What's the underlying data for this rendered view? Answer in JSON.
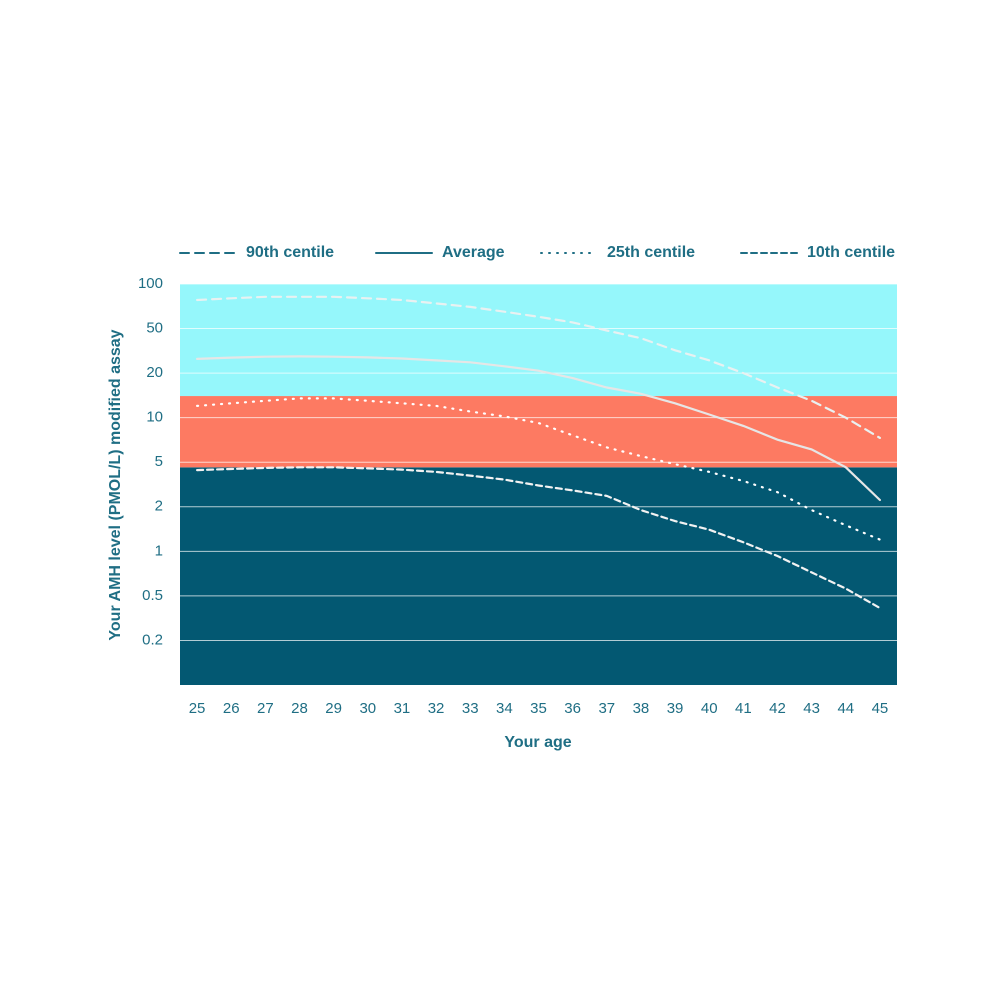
{
  "chart_data": {
    "type": "line",
    "x_label": "Your age",
    "y_label": "Your AMH level (PMOL/L) modified assay",
    "x": [
      25,
      26,
      27,
      28,
      29,
      30,
      31,
      32,
      33,
      34,
      35,
      36,
      37,
      38,
      39,
      40,
      41,
      42,
      43,
      44,
      45
    ],
    "xlim": [
      24.5,
      45.5
    ],
    "xticks": [
      25,
      26,
      27,
      28,
      29,
      30,
      31,
      32,
      33,
      34,
      35,
      36,
      37,
      38,
      39,
      40,
      41,
      42,
      43,
      44,
      45
    ],
    "ylim": [
      0.1,
      100
    ],
    "yticks": [
      0.2,
      0.5,
      1,
      2,
      5,
      10,
      20,
      50,
      100
    ],
    "grid": true,
    "legend_position": "top",
    "legend_color": "#1f6e84",
    "bands": [
      {
        "from": 0.1,
        "to": 4.5,
        "color": "#035872"
      },
      {
        "from": 4.5,
        "to": 14,
        "color": "#fd7a62"
      },
      {
        "from": 14,
        "to": 100,
        "color": "#95f7fb"
      }
    ],
    "series": [
      {
        "name": "90th centile",
        "color": "#e9f1f1",
        "dash": "9 6",
        "values": [
          78,
          80,
          82,
          82,
          82,
          80,
          78,
          74,
          70,
          65,
          60,
          55,
          48,
          41,
          32,
          26,
          20,
          16,
          13,
          10,
          7.3
        ]
      },
      {
        "name": "Average",
        "color": "#e6e6e6",
        "dash": "none",
        "values": [
          26.8,
          27.5,
          28,
          28.2,
          28,
          27.6,
          27,
          26,
          25,
          23,
          21,
          18.5,
          16,
          14.5,
          12.5,
          10.5,
          8.8,
          7.1,
          6.1,
          4.5,
          2.3
        ]
      },
      {
        "name": "25th centile",
        "color": "#ffffff",
        "dash": "1 7",
        "values": [
          12,
          12.5,
          13,
          13.5,
          13.5,
          13,
          12.5,
          12,
          11,
          10.2,
          9.2,
          7.6,
          6.3,
          5.5,
          4.8,
          4.1,
          3.4,
          2.7,
          1.9,
          1.5,
          1.2
        ]
      },
      {
        "name": "10th centile",
        "color": "#f2f2f2",
        "dash": "6 4",
        "values": [
          4.25,
          4.35,
          4.45,
          4.5,
          4.5,
          4.4,
          4.3,
          4.1,
          3.8,
          3.5,
          3.1,
          2.8,
          2.5,
          1.9,
          1.6,
          1.4,
          1.15,
          0.93,
          0.72,
          0.56,
          0.39
        ]
      }
    ]
  }
}
